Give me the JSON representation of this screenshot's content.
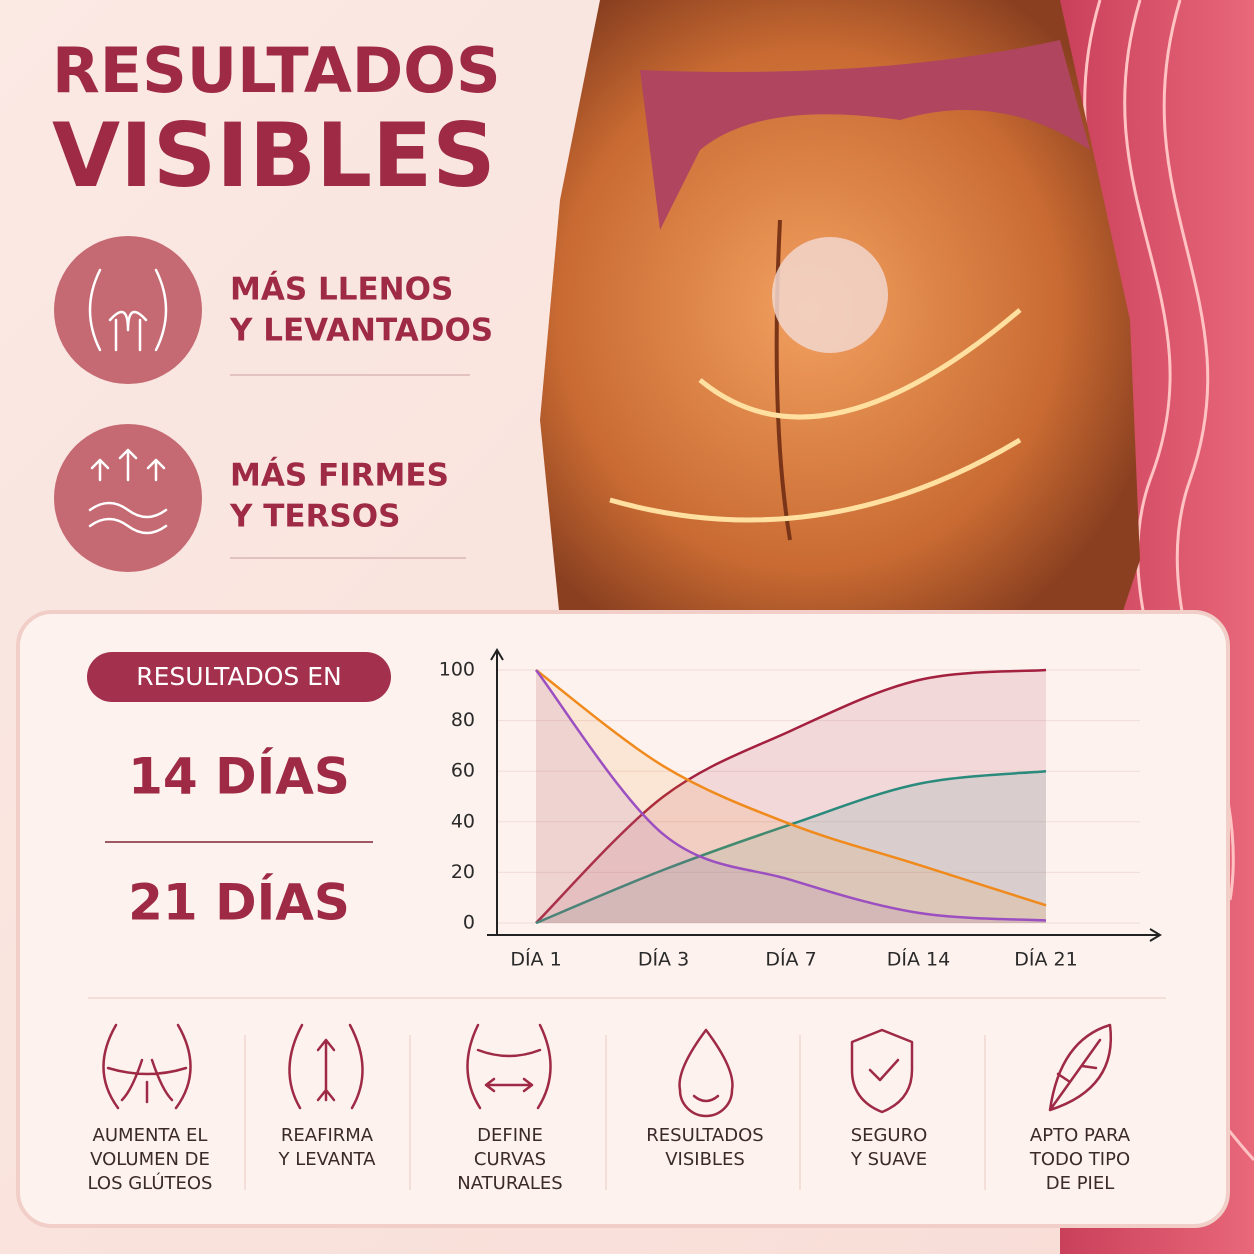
{
  "header": {
    "title_lines": [
      "RESULTADOS",
      "VISIBLES"
    ]
  },
  "features": [
    {
      "lines": [
        "MÁS LLENOS",
        "Y LEVANTADOS"
      ]
    },
    {
      "lines": [
        "MÁS FIRMES",
        "Y TERSOS"
      ]
    }
  ],
  "results": {
    "badge": "RESULTADOS EN",
    "periods": [
      "14 DÍAS",
      "21 DÍAS"
    ]
  },
  "chart_data": {
    "type": "line",
    "categories": [
      "DÍA 1",
      "DÍA 3",
      "DÍA 7",
      "DÍA 14",
      "DÍA 21"
    ],
    "series": [
      {
        "color": "#a3203f",
        "values": [
          0,
          50,
          76,
          96,
          100
        ]
      },
      {
        "color": "#2a8a7c",
        "values": [
          0,
          21,
          39,
          55,
          60
        ]
      },
      {
        "color": "#f08a1c",
        "values": [
          100,
          62,
          39,
          23,
          7
        ]
      },
      {
        "color": "#9b4fc0",
        "values": [
          100,
          35,
          17,
          4,
          1
        ]
      }
    ],
    "ylim": [
      0,
      100
    ],
    "yticks": [
      0,
      20,
      40,
      60,
      80,
      100
    ],
    "grid": true
  },
  "benefits": [
    {
      "lines": [
        "AUMENTA EL",
        "VOLUMEN DE",
        "LOS GLÚTEOS"
      ]
    },
    {
      "lines": [
        "REAFIRMA",
        "Y LEVANTA"
      ]
    },
    {
      "lines": [
        "DEFINE",
        "CURVAS",
        "NATURALES"
      ]
    },
    {
      "lines": [
        "RESULTADOS",
        "VISIBLES"
      ]
    },
    {
      "lines": [
        "SEGURO",
        "Y SUAVE"
      ]
    },
    {
      "lines": [
        "APTO PARA",
        "TODO TIPO",
        "DE PIEL"
      ]
    }
  ]
}
